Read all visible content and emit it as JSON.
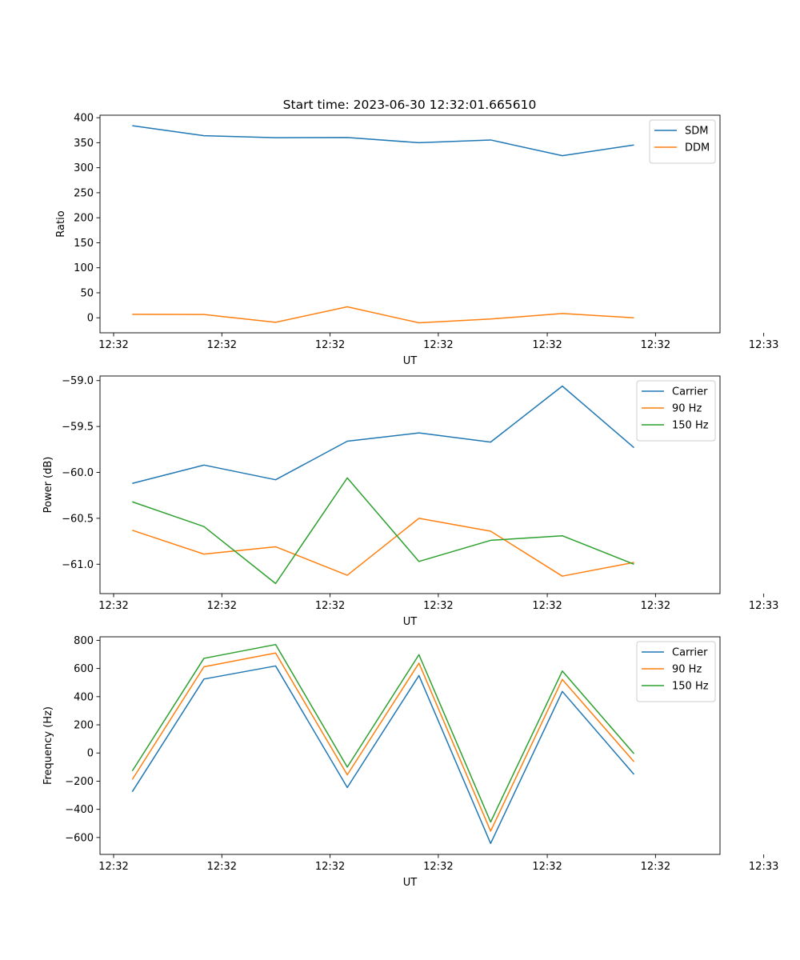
{
  "figure_title": "Start time: 2023-06-30 12:32:01.665610",
  "colors": {
    "blue": "#1f77b4",
    "orange": "#ff7f0e",
    "green": "#2ca02c"
  },
  "chart_data": [
    {
      "type": "line",
      "x": [
        1,
        2,
        3,
        4,
        5,
        6,
        7,
        8
      ],
      "xlim": [
        0.55,
        9.2
      ],
      "xticks": [
        0.74,
        2.25,
        3.76,
        5.27,
        6.79,
        8.3,
        9.81
      ],
      "xtick_labels": [
        "12:32",
        "12:32",
        "12:32",
        "12:32",
        "12:32",
        "12:32",
        "12:33"
      ],
      "xlabel": "UT",
      "ylabel": "Ratio",
      "ylim": [
        -30,
        405
      ],
      "yticks": [
        0,
        50,
        100,
        150,
        200,
        250,
        300,
        350,
        400
      ],
      "ytick_labels": [
        "0",
        "50",
        "100",
        "150",
        "200",
        "250",
        "300",
        "350",
        "400"
      ],
      "legend_position": "top-right",
      "series": [
        {
          "name": "SDM",
          "color": "#1f77b4",
          "values": [
            384,
            364,
            360,
            360.5,
            350,
            355.5,
            324,
            345.5
          ]
        },
        {
          "name": "DDM",
          "color": "#ff7f0e",
          "values": [
            7,
            6.5,
            -9,
            22,
            -10,
            -2.5,
            8.5,
            0
          ]
        }
      ]
    },
    {
      "type": "line",
      "x": [
        1,
        2,
        3,
        4,
        5,
        6,
        7,
        8
      ],
      "xlim": [
        0.55,
        9.2
      ],
      "xticks": [
        0.74,
        2.25,
        3.76,
        5.27,
        6.79,
        8.3,
        9.81
      ],
      "xtick_labels": [
        "12:32",
        "12:32",
        "12:32",
        "12:32",
        "12:32",
        "12:32",
        "12:33"
      ],
      "xlabel": "UT",
      "ylabel": "Power (dB)",
      "ylim": [
        -61.32,
        -58.95
      ],
      "yticks": [
        -61.0,
        -60.5,
        -60.0,
        -59.5,
        -59.0
      ],
      "ytick_labels": [
        "−61.0",
        "−60.5",
        "−60.0",
        "−59.5",
        "−59.0"
      ],
      "legend_position": "top-right",
      "series": [
        {
          "name": "Carrier",
          "color": "#1f77b4",
          "values": [
            -60.12,
            -59.92,
            -60.08,
            -59.66,
            -59.57,
            -59.67,
            -59.06,
            -59.73
          ]
        },
        {
          "name": "90 Hz",
          "color": "#ff7f0e",
          "values": [
            -60.63,
            -60.89,
            -60.81,
            -61.12,
            -60.5,
            -60.64,
            -61.13,
            -60.98
          ]
        },
        {
          "name": "150 Hz",
          "color": "#2ca02c",
          "values": [
            -60.32,
            -60.59,
            -61.21,
            -60.06,
            -60.97,
            -60.74,
            -60.69,
            -61.0
          ]
        }
      ]
    },
    {
      "type": "line",
      "x": [
        1,
        2,
        3,
        4,
        5,
        6,
        7,
        8
      ],
      "xlim": [
        0.55,
        9.2
      ],
      "xticks": [
        0.74,
        2.25,
        3.76,
        5.27,
        6.79,
        8.3,
        9.81
      ],
      "xtick_labels": [
        "12:32",
        "12:32",
        "12:32",
        "12:32",
        "12:32",
        "12:32",
        "12:33"
      ],
      "xlabel": "UT",
      "ylabel": "Frequency (Hz)",
      "ylim": [
        -720,
        825
      ],
      "yticks": [
        -600,
        -400,
        -200,
        0,
        200,
        400,
        600,
        800
      ],
      "ytick_labels": [
        "−600",
        "−400",
        "−200",
        "0",
        "200",
        "400",
        "600",
        "800"
      ],
      "legend_position": "top-right",
      "series": [
        {
          "name": "Carrier",
          "color": "#1f77b4",
          "values": [
            -275,
            525,
            618,
            -245,
            550,
            -642,
            437,
            -152
          ]
        },
        {
          "name": "90 Hz",
          "color": "#ff7f0e",
          "values": [
            -188,
            612,
            710,
            -155,
            638,
            -555,
            522,
            -62
          ]
        },
        {
          "name": "150 Hz",
          "color": "#2ca02c",
          "values": [
            -128,
            672,
            770,
            -100,
            698,
            -490,
            582,
            -5
          ]
        }
      ]
    }
  ]
}
